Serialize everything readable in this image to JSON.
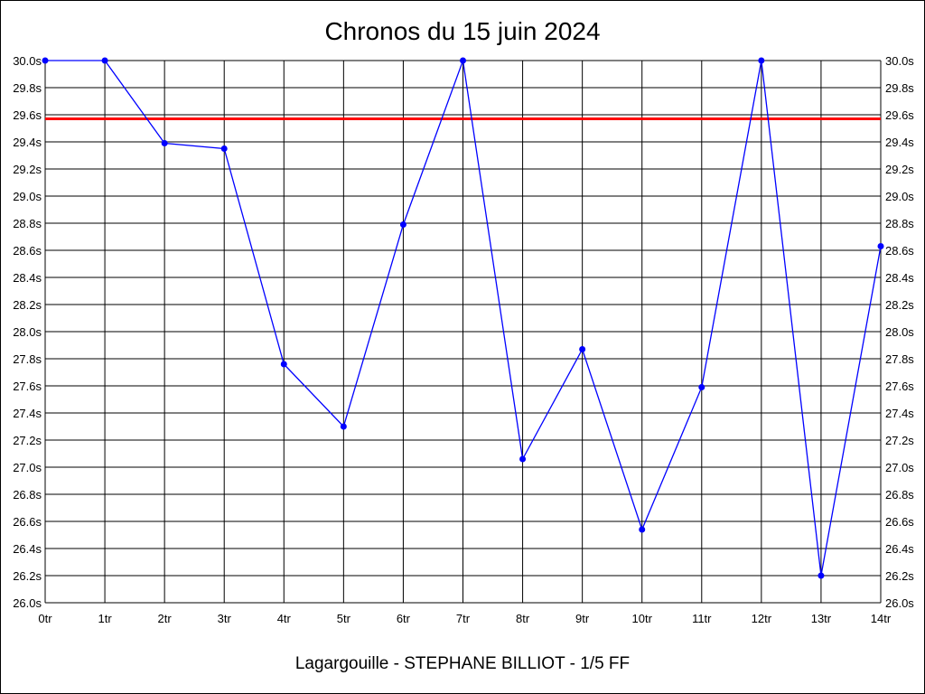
{
  "chart_data": {
    "type": "line",
    "title": "Chronos du 15 juin 2024",
    "footer": "Lagargouille - STEPHANE BILLIOT - 1/5 FF",
    "xlabel": "",
    "ylabel": "",
    "categories": [
      "0tr",
      "1tr",
      "2tr",
      "3tr",
      "4tr",
      "5tr",
      "6tr",
      "7tr",
      "8tr",
      "9tr",
      "10tr",
      "11tr",
      "12tr",
      "13tr",
      "14tr"
    ],
    "ylim": [
      26.0,
      30.0
    ],
    "y_ticks": [
      "26.0s",
      "26.2s",
      "26.4s",
      "26.6s",
      "26.8s",
      "27.0s",
      "27.2s",
      "27.4s",
      "27.6s",
      "27.8s",
      "28.0s",
      "28.2s",
      "28.4s",
      "28.6s",
      "28.8s",
      "29.0s",
      "29.2s",
      "29.4s",
      "29.6s",
      "29.8s",
      "30.0s"
    ],
    "series": [
      {
        "color": "#0000ff",
        "values": [
          30.0,
          30.0,
          29.39,
          29.35,
          27.76,
          27.3,
          28.79,
          30.0,
          27.06,
          27.87,
          26.54,
          27.59,
          30.0,
          26.2,
          28.63
        ]
      }
    ],
    "reference_line": {
      "value": 29.57,
      "color": "#ff0000"
    },
    "grid": true
  }
}
